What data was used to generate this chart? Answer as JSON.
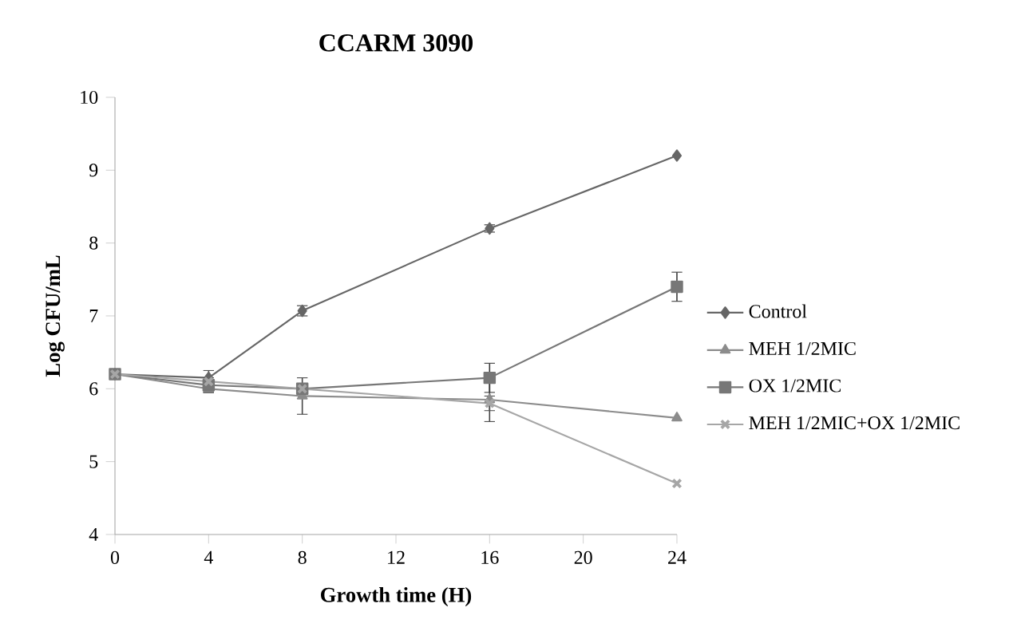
{
  "chart_data": {
    "type": "line",
    "title": "CCARM 3090",
    "xlabel": "Growth time (H)",
    "ylabel": "Log CFU/mL",
    "x": [
      0,
      4,
      8,
      16,
      24
    ],
    "series": [
      {
        "name": "Control",
        "color": "#666666",
        "marker": "diamond",
        "values": [
          6.2,
          6.15,
          7.07,
          8.2,
          9.2
        ],
        "errors": [
          null,
          null,
          0.07,
          0.05,
          null
        ]
      },
      {
        "name": "MEH 1/2MIC",
        "color": "#8c8c8c",
        "marker": "triangle",
        "values": [
          6.2,
          6.0,
          5.9,
          5.85,
          5.6
        ],
        "errors": [
          null,
          0.05,
          0.25,
          0.3,
          null
        ]
      },
      {
        "name": "OX 1/2MIC",
        "color": "#777777",
        "marker": "square",
        "values": [
          6.2,
          6.05,
          6.0,
          6.15,
          7.4
        ],
        "errors": [
          null,
          0.1,
          null,
          0.2,
          0.2
        ]
      },
      {
        "name": "MEH 1/2MIC+OX 1/2MIC",
        "color": "#a6a6a6",
        "marker": "cross",
        "values": [
          6.2,
          6.1,
          6.0,
          5.8,
          4.7
        ],
        "errors": [
          null,
          0.15,
          null,
          0.1,
          null
        ]
      }
    ],
    "xlim": [
      0,
      24
    ],
    "xticks": [
      0,
      4,
      8,
      12,
      16,
      20,
      24
    ],
    "ylim": [
      4,
      10
    ],
    "yticks": [
      4,
      5,
      6,
      7,
      8,
      9,
      10
    ],
    "grid": false,
    "legend": "right",
    "line_style": "solid"
  }
}
